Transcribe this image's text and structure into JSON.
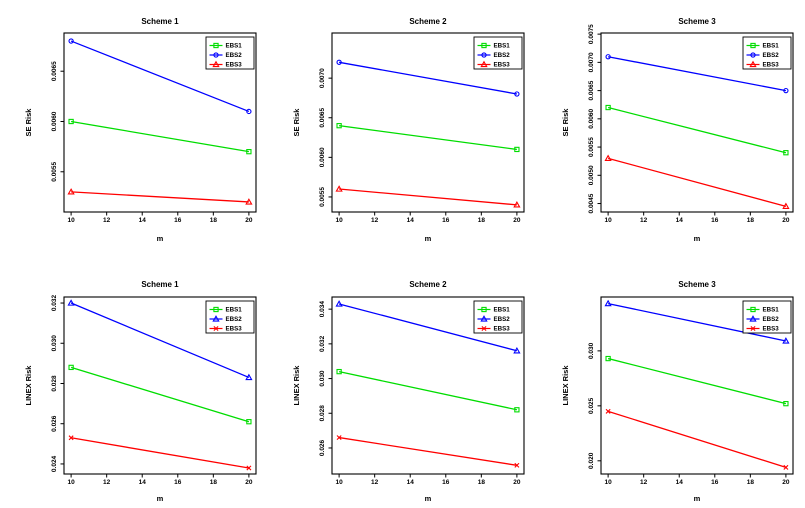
{
  "figure": {
    "background": "#ffffff",
    "rows": 2,
    "columns": 3,
    "x_axis_label": "m",
    "top_row_ylabel": "SE Risk",
    "bottom_row_ylabel": "LINEX Risk"
  },
  "colors": {
    "ebs1": "#00DD00",
    "ebs2": "#0000FF",
    "ebs3": "#FF0000",
    "axis": "#000000"
  },
  "chart_data": [
    {
      "type": "line",
      "row": 1,
      "title": "Scheme 1",
      "xlabel": "m",
      "ylabel": "SE Risk",
      "x": [
        10,
        20
      ],
      "xticks": [
        10,
        12,
        14,
        16,
        18,
        20
      ],
      "xlim": [
        9.6,
        20.4
      ],
      "ylim": [
        0.0051,
        0.00688
      ],
      "yticks": [
        0.0055,
        0.006,
        0.0065
      ],
      "ytick_labels": [
        "0.0055",
        "0.0060",
        "0.0065"
      ],
      "grid": false,
      "legend_position": "topright",
      "legend_entries": [
        "EBS1",
        "EBS2",
        "EBS3"
      ],
      "series": [
        {
          "name": "EBS1",
          "color": "#00DD00",
          "marker": "square",
          "values": [
            0.006,
            0.0057
          ]
        },
        {
          "name": "EBS2",
          "color": "#0000FF",
          "marker": "circle",
          "values": [
            0.0068,
            0.0061
          ]
        },
        {
          "name": "EBS3",
          "color": "#FF0000",
          "marker": "triangle",
          "values": [
            0.0053,
            0.0052
          ]
        }
      ]
    },
    {
      "type": "line",
      "row": 1,
      "title": "Scheme 2",
      "xlabel": "m",
      "ylabel": "SE Risk",
      "x": [
        10,
        20
      ],
      "xticks": [
        10,
        12,
        14,
        16,
        18,
        20
      ],
      "xlim": [
        9.6,
        20.4
      ],
      "ylim": [
        0.00531,
        0.00757
      ],
      "yticks": [
        0.0055,
        0.006,
        0.0065,
        0.007
      ],
      "ytick_labels": [
        "0.0055",
        "0.0060",
        "0.0065",
        "0.0070"
      ],
      "grid": false,
      "legend_position": "topright",
      "legend_entries": [
        "EBS1",
        "EBS2",
        "EBS3"
      ],
      "series": [
        {
          "name": "EBS1",
          "color": "#00DD00",
          "marker": "square",
          "values": [
            0.0064,
            0.0061
          ]
        },
        {
          "name": "EBS2",
          "color": "#0000FF",
          "marker": "circle",
          "values": [
            0.0072,
            0.0068
          ]
        },
        {
          "name": "EBS3",
          "color": "#FF0000",
          "marker": "triangle",
          "values": [
            0.0056,
            0.0054
          ]
        }
      ]
    },
    {
      "type": "line",
      "row": 1,
      "title": "Scheme 3",
      "xlabel": "m",
      "ylabel": "SE Risk",
      "x": [
        10,
        20
      ],
      "xticks": [
        10,
        12,
        14,
        16,
        18,
        20
      ],
      "xlim": [
        9.6,
        20.4
      ],
      "ylim": [
        0.00435,
        0.00752
      ],
      "yticks": [
        0.0045,
        0.005,
        0.0055,
        0.006,
        0.0065,
        0.007,
        0.0075
      ],
      "ytick_labels": [
        "0.0045",
        "0.0050",
        "0.0055",
        "0.0060",
        "0.0065",
        "0.0070",
        "0.0075"
      ],
      "grid": false,
      "legend_position": "topright",
      "legend_entries": [
        "EBS1",
        "EBS2",
        "EBS3"
      ],
      "series": [
        {
          "name": "EBS1",
          "color": "#00DD00",
          "marker": "square",
          "values": [
            0.0062,
            0.0054
          ]
        },
        {
          "name": "EBS2",
          "color": "#0000FF",
          "marker": "circle",
          "values": [
            0.0071,
            0.0065
          ]
        },
        {
          "name": "EBS3",
          "color": "#FF0000",
          "marker": "triangle",
          "values": [
            0.0053,
            0.00445
          ]
        }
      ]
    },
    {
      "type": "line",
      "row": 2,
      "title": "Scheme 1",
      "xlabel": "m",
      "ylabel": "LINEX Risk",
      "x": [
        10,
        20
      ],
      "xticks": [
        10,
        12,
        14,
        16,
        18,
        20
      ],
      "xlim": [
        9.6,
        20.4
      ],
      "ylim": [
        0.0235,
        0.0323
      ],
      "yticks": [
        0.024,
        0.026,
        0.028,
        0.03,
        0.032
      ],
      "ytick_labels": [
        "0.024",
        "0.026",
        "0.028",
        "0.030",
        "0.032"
      ],
      "grid": false,
      "legend_position": "topright",
      "legend_entries": [
        "EBS1",
        "EBS2",
        "EBS3"
      ],
      "series": [
        {
          "name": "EBS1",
          "color": "#00DD00",
          "marker": "square",
          "values": [
            0.0288,
            0.0261
          ]
        },
        {
          "name": "EBS2",
          "color": "#0000FF",
          "marker": "triangle",
          "values": [
            0.032,
            0.0283
          ]
        },
        {
          "name": "EBS3",
          "color": "#FF0000",
          "marker": "x",
          "values": [
            0.0253,
            0.0238
          ]
        }
      ]
    },
    {
      "type": "line",
      "row": 2,
      "title": "Scheme 2",
      "xlabel": "m",
      "ylabel": "LINEX Risk",
      "x": [
        10,
        20
      ],
      "xticks": [
        10,
        12,
        14,
        16,
        18,
        20
      ],
      "xlim": [
        9.6,
        20.4
      ],
      "ylim": [
        0.0245,
        0.0347
      ],
      "yticks": [
        0.026,
        0.028,
        0.03,
        0.032,
        0.034
      ],
      "ytick_labels": [
        "0.026",
        "0.028",
        "0.030",
        "0.032",
        "0.034"
      ],
      "grid": false,
      "legend_position": "topright",
      "legend_entries": [
        "EBS1",
        "EBS2",
        "EBS3"
      ],
      "series": [
        {
          "name": "EBS1",
          "color": "#00DD00",
          "marker": "square",
          "values": [
            0.0304,
            0.0282
          ]
        },
        {
          "name": "EBS2",
          "color": "#0000FF",
          "marker": "triangle",
          "values": [
            0.0343,
            0.0316
          ]
        },
        {
          "name": "EBS3",
          "color": "#FF0000",
          "marker": "x",
          "values": [
            0.0266,
            0.025
          ]
        }
      ]
    },
    {
      "type": "line",
      "row": 2,
      "title": "Scheme 3",
      "xlabel": "m",
      "ylabel": "LINEX Risk",
      "x": [
        10,
        20
      ],
      "xticks": [
        10,
        12,
        14,
        16,
        18,
        20
      ],
      "xlim": [
        9.6,
        20.4
      ],
      "ylim": [
        0.0188,
        0.0349
      ],
      "yticks": [
        0.02,
        0.025,
        0.03
      ],
      "ytick_labels": [
        "0.020",
        "0.025",
        "0.030"
      ],
      "grid": false,
      "legend_position": "topright",
      "legend_entries": [
        "EBS1",
        "EBS2",
        "EBS3"
      ],
      "series": [
        {
          "name": "EBS1",
          "color": "#00DD00",
          "marker": "square",
          "values": [
            0.0293,
            0.0252
          ]
        },
        {
          "name": "EBS2",
          "color": "#0000FF",
          "marker": "triangle",
          "values": [
            0.0343,
            0.0309
          ]
        },
        {
          "name": "EBS3",
          "color": "#FF0000",
          "marker": "x",
          "values": [
            0.0245,
            0.0194
          ]
        }
      ]
    }
  ]
}
